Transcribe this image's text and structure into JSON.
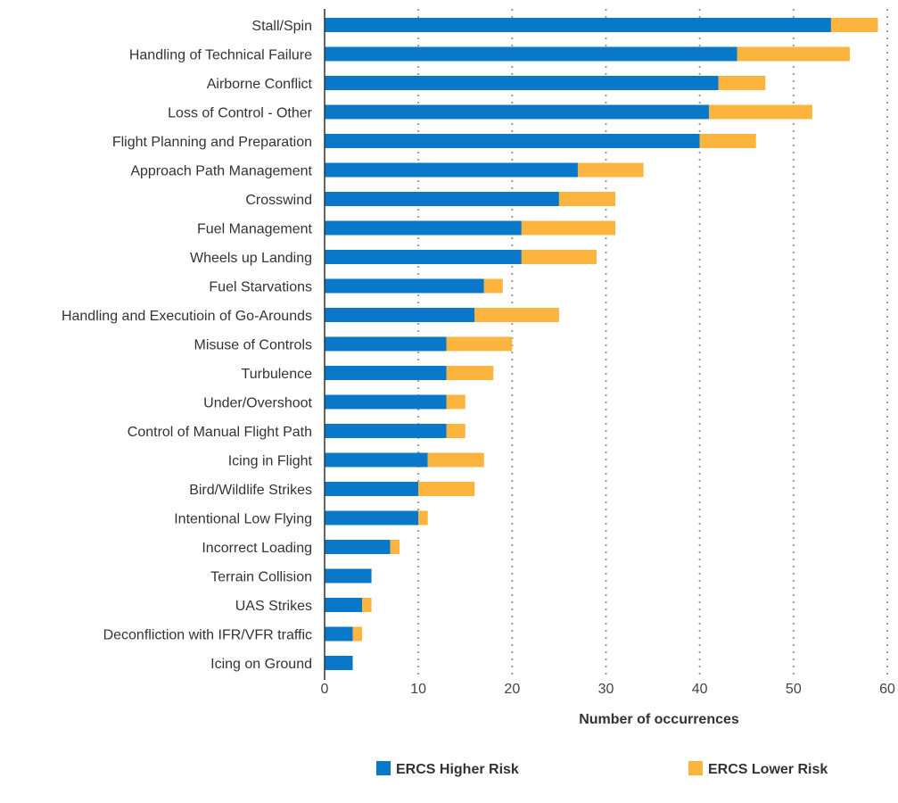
{
  "chart_data": {
    "type": "bar",
    "orientation": "horizontal",
    "stacked": true,
    "categories": [
      "Stall/Spin",
      "Handling of Technical Failure",
      "Airborne Conflict",
      "Loss of Control - Other",
      "Flight Planning and Preparation",
      "Approach Path Management",
      "Crosswind",
      "Fuel Management",
      "Wheels up Landing",
      "Fuel Starvations",
      "Handling and Executioin of Go-Arounds",
      "Misuse of Controls",
      "Turbulence",
      "Under/Overshoot",
      "Control of Manual Flight Path",
      "Icing in Flight",
      "Bird/Wildlife Strikes",
      "Intentional Low Flying",
      "Incorrect Loading",
      "Terrain Collision",
      "UAS  Strikes",
      "Deconfliction with IFR/VFR traffic",
      "Icing on Ground"
    ],
    "series": [
      {
        "name": "ERCS Higher Risk",
        "color": "#0a78c8",
        "values": [
          54,
          44,
          42,
          41,
          40,
          27,
          25,
          21,
          21,
          17,
          16,
          13,
          13,
          13,
          13,
          11,
          10,
          10,
          7,
          5,
          4,
          3,
          3
        ]
      },
      {
        "name": "ERCS Lower Risk",
        "color": "#fbb53e",
        "values": [
          5,
          12,
          5,
          11,
          6,
          7,
          6,
          10,
          8,
          2,
          9,
          7,
          5,
          2,
          2,
          6,
          6,
          1,
          1,
          0,
          1,
          1,
          0
        ]
      }
    ],
    "xlabel": "Number of occurrences",
    "ylabel": "",
    "xlim": [
      0,
      60
    ],
    "xticks": [
      0,
      10,
      20,
      30,
      40,
      50,
      60
    ],
    "grid": "vertical dotted",
    "legend_position": "bottom"
  }
}
